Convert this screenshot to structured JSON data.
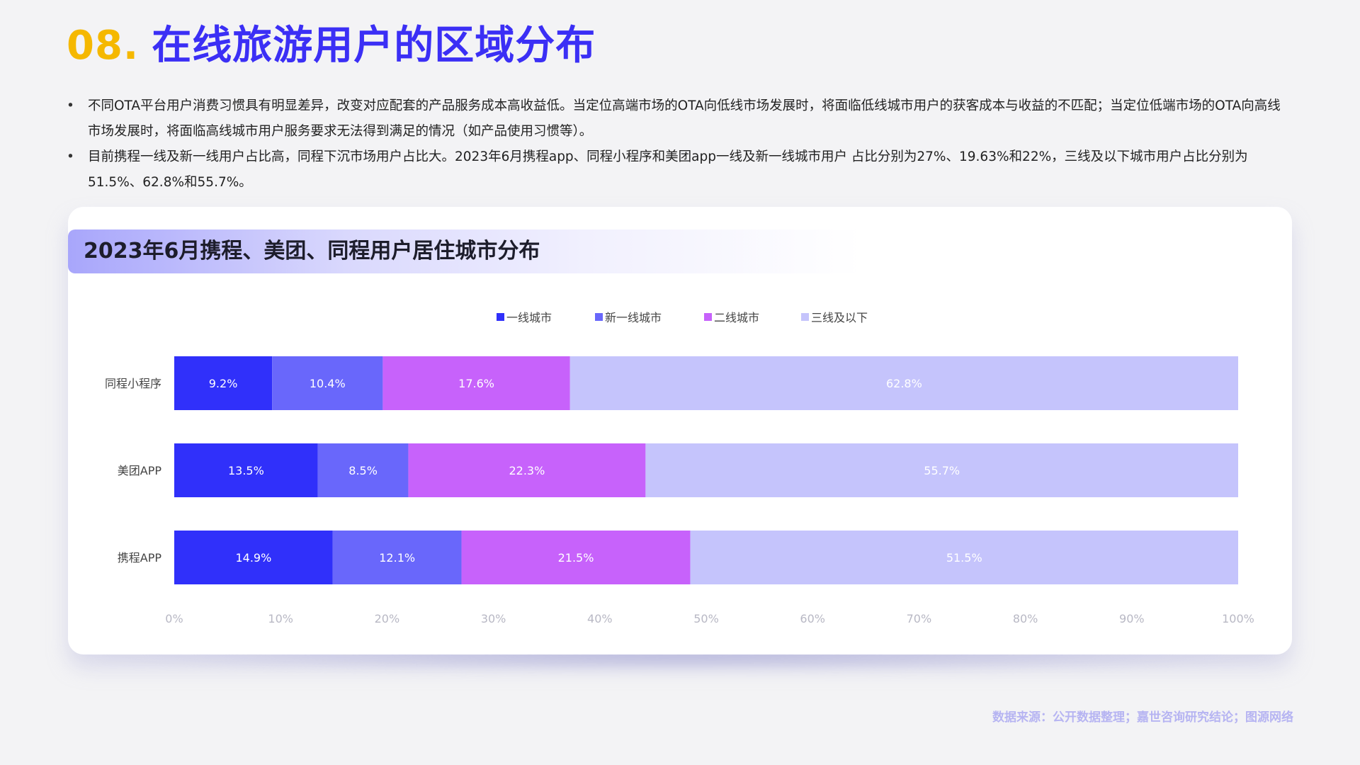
{
  "header": {
    "number": "08.",
    "title": "在线旅游用户的区域分布"
  },
  "bullets": [
    "不同OTA平台用户消费习惯具有明显差异，改变对应配套的产品服务成本高收益低。当定位高端市场的OTA向低线市场发展时，将面临低线城市用户的获客成本与收益的不匹配；当定位低端市场的OTA向高线市场发展时，将面临高线城市用户服务要求无法得到满足的情况（如产品使用习惯等）。",
    "目前携程一线及新一线用户占比高，同程下沉市场用户占比大。2023年6月携程app、同程小程序和美团app一线及新一线城市用户 占比分别为27%、19.63%和22%，三线及以下城市用户占比分别为51.5%、62.8%和55.7%。"
  ],
  "chart_data": {
    "type": "bar",
    "orientation": "horizontal",
    "stacked": true,
    "title": "2023年6月携程、美团、同程用户居住城市分布",
    "categories": [
      "同程小程序",
      "美团APP",
      "携程APP"
    ],
    "series": [
      {
        "name": "一线城市",
        "color": "#3030fa",
        "values": [
          9.2,
          13.5,
          14.9
        ]
      },
      {
        "name": "新一线城市",
        "color": "#6967fb",
        "values": [
          10.4,
          8.5,
          12.1
        ]
      },
      {
        "name": "二线城市",
        "color": "#c762fb",
        "values": [
          17.6,
          22.3,
          21.5
        ]
      },
      {
        "name": "三线及以下",
        "color": "#c5c4fc",
        "values": [
          62.8,
          55.7,
          51.5
        ]
      }
    ],
    "data_labels": [
      [
        "9.2%",
        "10.4%",
        "17.6%",
        "62.8%"
      ],
      [
        "13.5%",
        "8.5%",
        "22.3%",
        "55.7%"
      ],
      [
        "14.9%",
        "12.1%",
        "21.5%",
        "51.5%"
      ]
    ],
    "x_ticks": [
      "0%",
      "10%",
      "20%",
      "30%",
      "40%",
      "50%",
      "60%",
      "70%",
      "80%",
      "90%",
      "100%"
    ],
    "xlim": [
      0,
      100
    ],
    "grid": false,
    "legend_position": "top-center"
  },
  "source": "数据来源：公开数据整理；嘉世咨询研究结论；图源网络"
}
